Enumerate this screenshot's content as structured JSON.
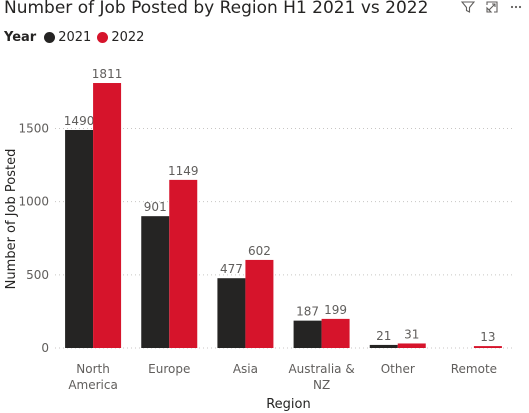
{
  "header": {
    "title": "Number of Job Posted by Region H1 2021 vs 2022",
    "filter_icon": "filter-icon",
    "focus_icon": "focus-mode-icon",
    "more_icon": "more-options-icon"
  },
  "legend": {
    "title": "Year",
    "items": [
      {
        "label": "2021",
        "color": "#252423"
      },
      {
        "label": "2022",
        "color": "#d6142b"
      }
    ]
  },
  "chart_data": {
    "type": "bar",
    "title": "Number of Job Posted by Region H1 2021 vs 2022",
    "xlabel": "Region",
    "ylabel": "Number of Job Posted",
    "categories": [
      "North America",
      "Europe",
      "Asia",
      "Australia & NZ",
      "Other",
      "Remote"
    ],
    "category_lines": [
      [
        "North",
        "America"
      ],
      [
        "Europe"
      ],
      [
        "Asia"
      ],
      [
        "Australia &",
        "NZ"
      ],
      [
        "Other"
      ],
      [
        "Remote"
      ]
    ],
    "series": [
      {
        "name": "2021",
        "color": "#252423",
        "values": [
          1490,
          901,
          477,
          187,
          21,
          null
        ]
      },
      {
        "name": "2022",
        "color": "#d6142b",
        "values": [
          1811,
          1149,
          602,
          199,
          31,
          13
        ]
      }
    ],
    "ylim": [
      0,
      1900
    ],
    "yticks": [
      0,
      500,
      1000,
      1500
    ],
    "grid": true,
    "legend_position": "top-left"
  }
}
